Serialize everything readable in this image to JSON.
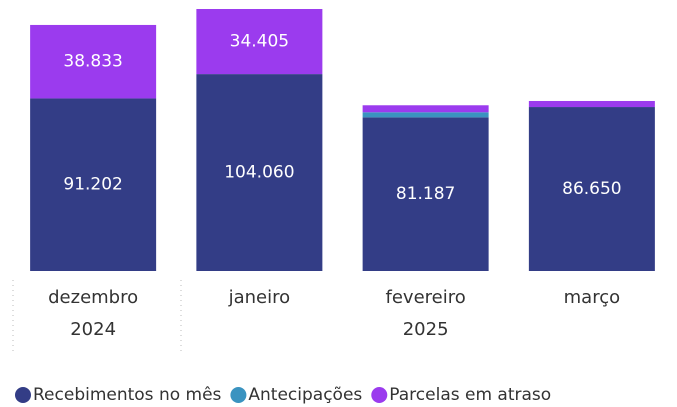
{
  "chart_data": {
    "type": "stacked_bar",
    "categories": [
      "dezembro",
      "janeiro",
      "fevereiro",
      "março"
    ],
    "years": [
      "2024",
      null,
      "2025",
      null
    ],
    "series": [
      {
        "name": "Recebimentos no mês",
        "color": "#333d86",
        "values": [
          91202,
          104060,
          81187,
          86650
        ],
        "value_labels": [
          "91.202",
          "104.060",
          "81.187",
          "86.650"
        ]
      },
      {
        "name": "Antecipações",
        "color": "#3a93c0",
        "values": [
          0,
          0,
          2700,
          0
        ],
        "value_labels": [
          null,
          null,
          null,
          null
        ]
      },
      {
        "name": "Parcelas em atraso",
        "color": "#9b3bee",
        "values": [
          38833,
          34405,
          3700,
          3200
        ],
        "value_labels": [
          "38.833",
          "34.405",
          null,
          null
        ]
      }
    ]
  }
}
